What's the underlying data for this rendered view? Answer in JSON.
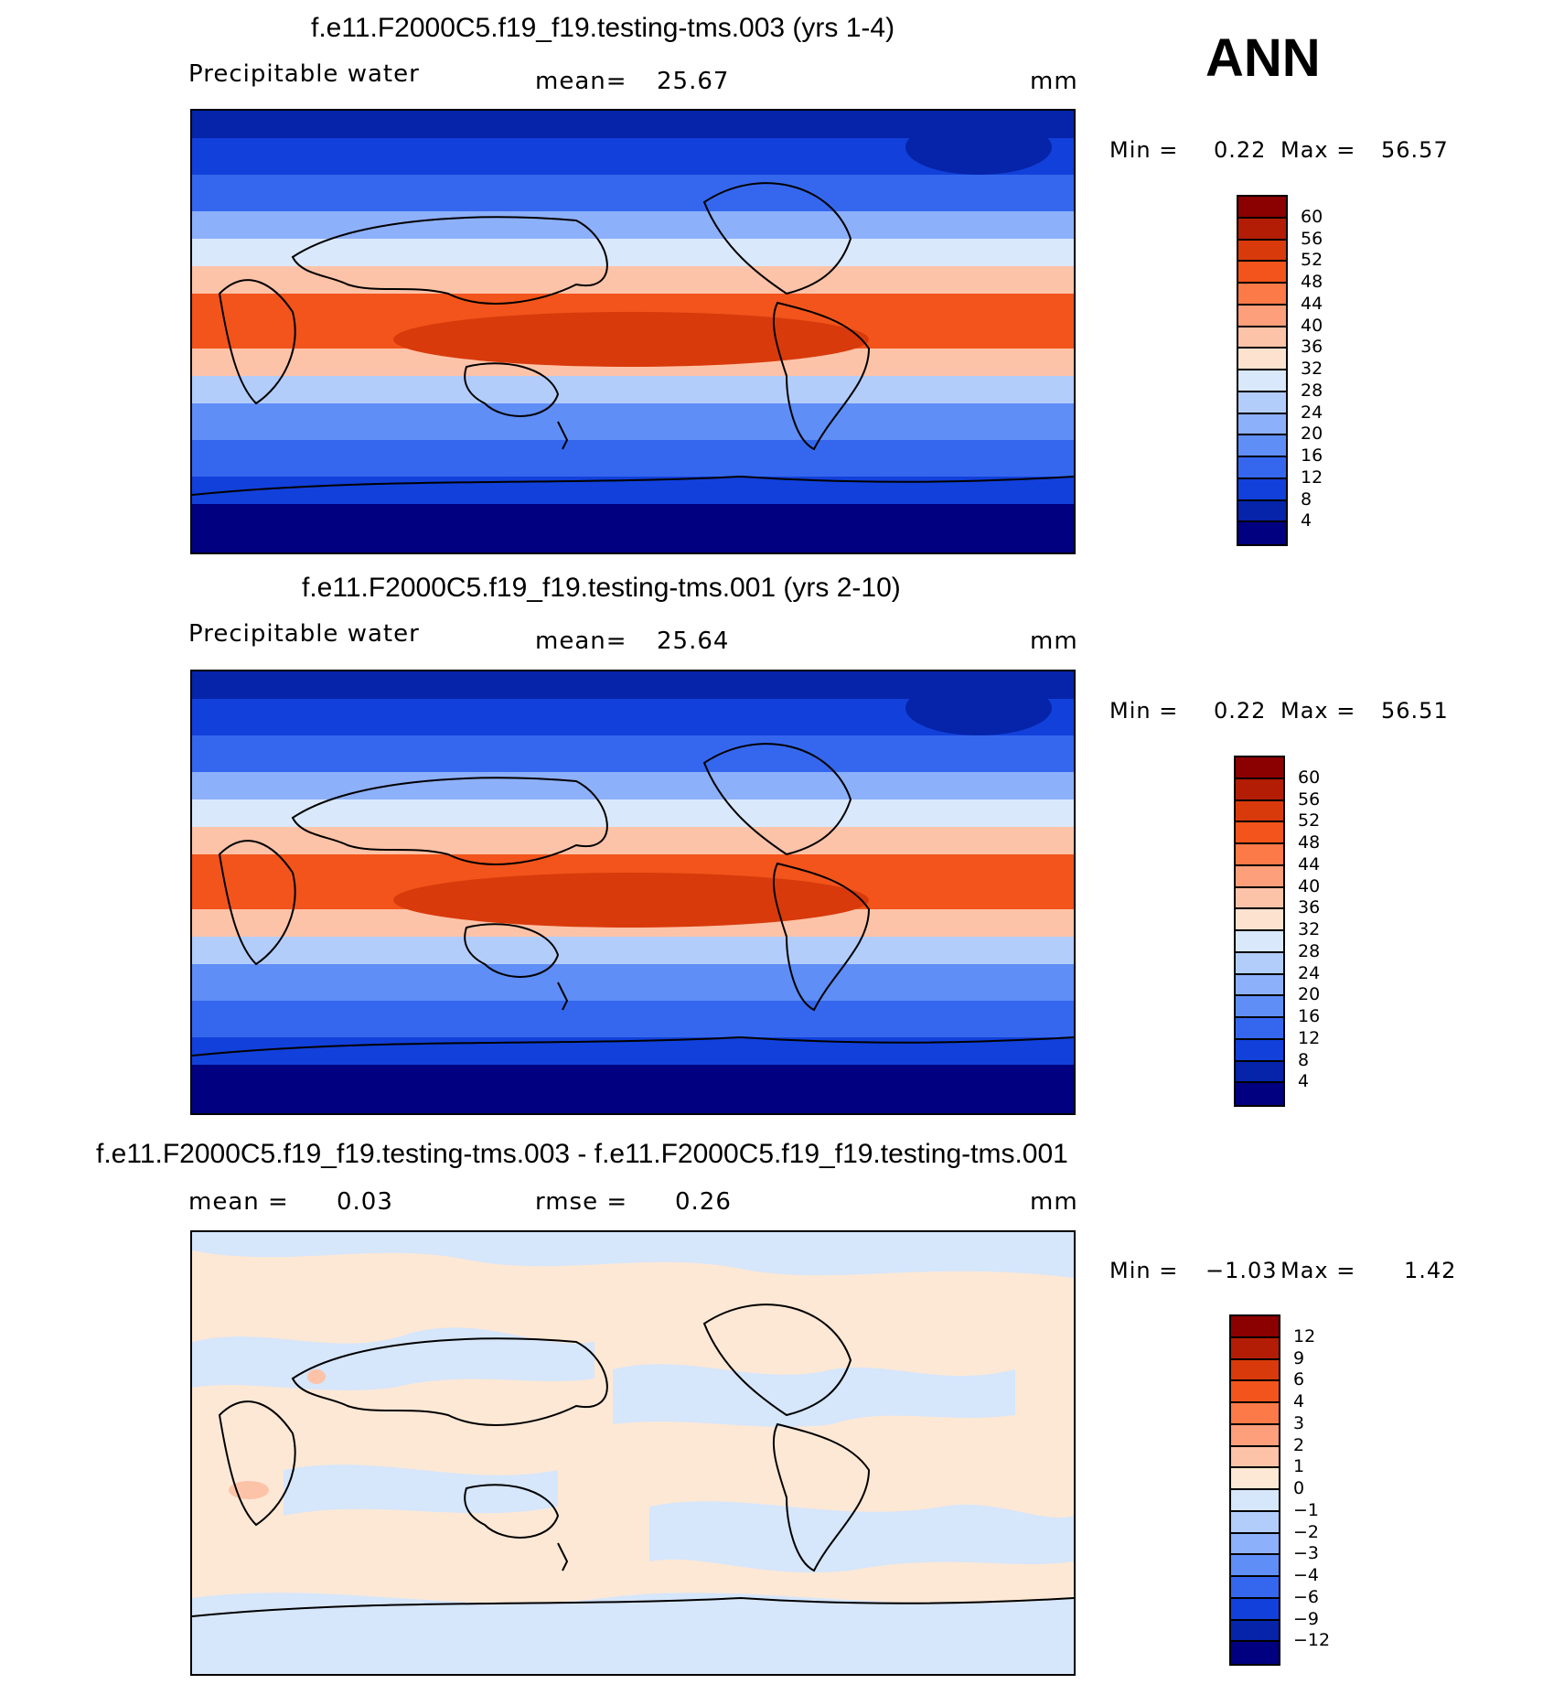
{
  "season": "ANN",
  "units": "mm",
  "panels": [
    {
      "id": "test",
      "title": "f.e11.F2000C5.f19_f19.testing-tms.003 (yrs 1-4)",
      "variable": "Precipitable water",
      "stat_label": "mean=",
      "stat_value": "25.67",
      "units": "mm",
      "min_label": "Min =",
      "min_value": "0.22",
      "max_label": "Max =",
      "max_value": "56.57",
      "colorbar": {
        "labels": [
          "60",
          "56",
          "52",
          "48",
          "44",
          "40",
          "36",
          "32",
          "28",
          "24",
          "20",
          "16",
          "12",
          "8",
          "4"
        ],
        "colors": [
          "#8b0000",
          "#b31d05",
          "#d93a0b",
          "#f2541b",
          "#fb7a47",
          "#fc9f7a",
          "#fdc3a8",
          "#fde3cf",
          "#d9e8fb",
          "#b3cdfb",
          "#8db0fa",
          "#5f8ef6",
          "#3567ee",
          "#1240da",
          "#0524a9",
          "#000080"
        ]
      }
    },
    {
      "id": "control",
      "title": "f.e11.F2000C5.f19_f19.testing-tms.001 (yrs 2-10)",
      "variable": "Precipitable water",
      "stat_label": "mean=",
      "stat_value": "25.64",
      "units": "mm",
      "min_label": "Min =",
      "min_value": "0.22",
      "max_label": "Max =",
      "max_value": "56.51",
      "colorbar": {
        "labels": [
          "60",
          "56",
          "52",
          "48",
          "44",
          "40",
          "36",
          "32",
          "28",
          "24",
          "20",
          "16",
          "12",
          "8",
          "4"
        ],
        "colors": [
          "#8b0000",
          "#b31d05",
          "#d93a0b",
          "#f2541b",
          "#fb7a47",
          "#fc9f7a",
          "#fdc3a8",
          "#fde3cf",
          "#d9e8fb",
          "#b3cdfb",
          "#8db0fa",
          "#5f8ef6",
          "#3567ee",
          "#1240da",
          "#0524a9",
          "#000080"
        ]
      }
    },
    {
      "id": "diff",
      "title": "f.e11.F2000C5.f19_f19.testing-tms.003 - f.e11.F2000C5.f19_f19.testing-tms.001",
      "stat_label": "mean =",
      "stat_value": "0.03",
      "stat2_label": "rmse =",
      "stat2_value": "0.26",
      "units": "mm",
      "min_label": "Min =",
      "min_value": "−1.03",
      "max_label": "Max =",
      "max_value": "1.42",
      "colorbar": {
        "labels": [
          "12",
          "9",
          "6",
          "4",
          "3",
          "2",
          "1",
          "0",
          "−1",
          "−2",
          "−3",
          "−4",
          "−6",
          "−9",
          "−12"
        ],
        "colors": [
          "#8b0000",
          "#b31d05",
          "#d93a0b",
          "#f2541b",
          "#fb7a47",
          "#fc9f7a",
          "#fdc3a8",
          "#fde8d5",
          "#d6e6fb",
          "#b3cdfb",
          "#8db0fa",
          "#5f8ef6",
          "#3567ee",
          "#1240da",
          "#0524a9",
          "#000080"
        ]
      }
    }
  ]
}
